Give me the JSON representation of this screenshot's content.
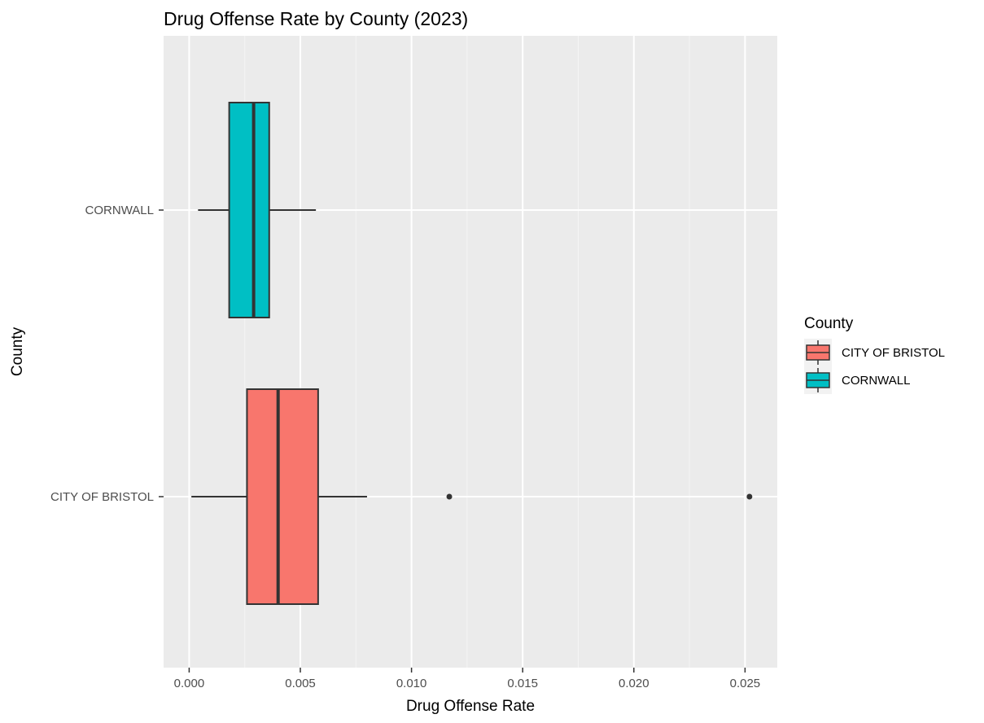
{
  "chart_data": {
    "type": "boxplot",
    "title": "Drug Offense Rate by County (2023)",
    "xlabel": "Drug Offense Rate",
    "ylabel": "County",
    "xlim": [
      -0.00115,
      0.02645
    ],
    "x_ticks": [
      0.0,
      0.005,
      0.01,
      0.015,
      0.02,
      0.025
    ],
    "x_tick_labels": [
      "0.000",
      "0.005",
      "0.010",
      "0.015",
      "0.020",
      "0.025"
    ],
    "categories": [
      "CITY OF BRISTOL",
      "CORNWALL"
    ],
    "grid": true,
    "legend": {
      "title": "County",
      "position": "right",
      "entries": [
        "CITY OF BRISTOL",
        "CORNWALL"
      ]
    },
    "series": [
      {
        "category": "CITY OF BRISTOL",
        "color": "#F8766D",
        "min": 0.0001,
        "q1": 0.0026,
        "median": 0.004,
        "q3": 0.0058,
        "max": 0.008,
        "outliers": [
          0.0117,
          0.0252
        ]
      },
      {
        "category": "CORNWALL",
        "color": "#00BFC4",
        "min": 0.0004,
        "q1": 0.0018,
        "median": 0.0029,
        "q3": 0.0036,
        "max": 0.0057,
        "outliers": []
      }
    ]
  },
  "colors": {
    "panel_background": "#EBEBEB",
    "grid_major": "#FFFFFF",
    "grid_minor": "#F5F5F5",
    "box_outline": "#333333"
  }
}
